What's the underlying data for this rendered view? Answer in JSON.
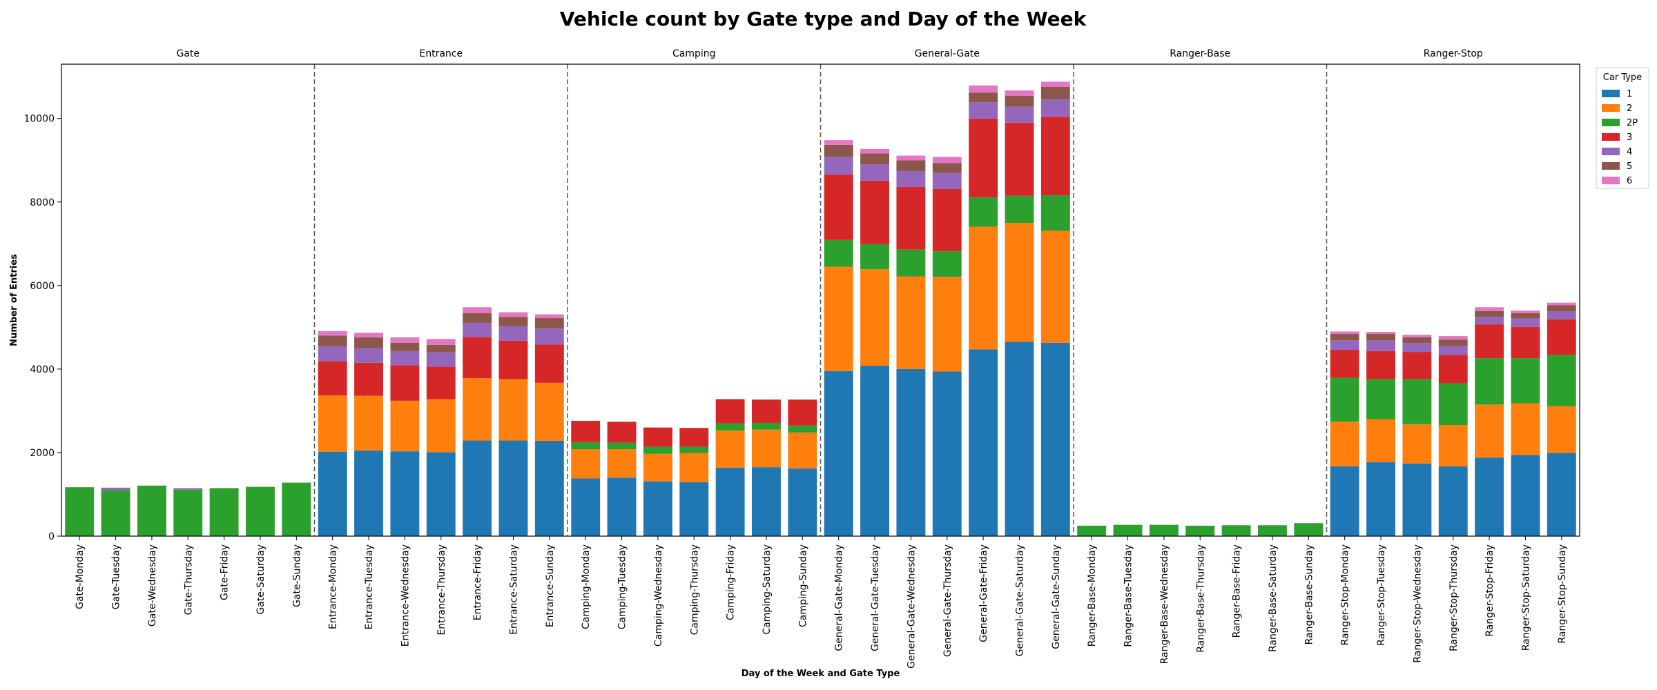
{
  "chart_data": {
    "type": "bar",
    "stacked": true,
    "title": "Vehicle count by Gate type and Day of the Week",
    "xlabel": "Day of the Week and Gate Type",
    "ylabel": "Number of Entries",
    "ylim": [
      0,
      11300
    ],
    "yticks": [
      0,
      2000,
      4000,
      6000,
      8000,
      10000
    ],
    "grid": false,
    "legend_title": "Car Type",
    "legend_position": "upper-right-outside",
    "groups": [
      "Gate",
      "Entrance",
      "Camping",
      "General-Gate",
      "Ranger-Base",
      "Ranger-Stop"
    ],
    "categories": [
      "Gate-Monday",
      "Gate-Tuesday",
      "Gate-Wednesday",
      "Gate-Thursday",
      "Gate-Friday",
      "Gate-Saturday",
      "Gate-Sunday",
      "Entrance-Monday",
      "Entrance-Tuesday",
      "Entrance-Wednesday",
      "Entrance-Thursday",
      "Entrance-Friday",
      "Entrance-Saturday",
      "Entrance-Sunday",
      "Camping-Monday",
      "Camping-Tuesday",
      "Camping-Wednesday",
      "Camping-Thursday",
      "Camping-Friday",
      "Camping-Saturday",
      "Camping-Sunday",
      "General-Gate-Monday",
      "General-Gate-Tuesday",
      "General-Gate-Wednesday",
      "General-Gate-Thursday",
      "General-Gate-Friday",
      "General-Gate-Saturday",
      "General-Gate-Sunday",
      "Ranger-Base-Monday",
      "Ranger-Base-Tuesday",
      "Ranger-Base-Wednesday",
      "Ranger-Base-Thursday",
      "Ranger-Base-Friday",
      "Ranger-Base-Saturday",
      "Ranger-Base-Sunday",
      "Ranger-Stop-Monday",
      "Ranger-Stop-Tuesday",
      "Ranger-Stop-Wednesday",
      "Ranger-Stop-Thursday",
      "Ranger-Stop-Friday",
      "Ranger-Stop-Saturday",
      "Ranger-Stop-Sunday"
    ],
    "series": [
      {
        "name": "1",
        "color": "#1f77b4",
        "values": [
          0,
          0,
          0,
          0,
          0,
          0,
          0,
          2020,
          2050,
          2030,
          2010,
          2290,
          2290,
          2280,
          1380,
          1400,
          1310,
          1290,
          1640,
          1650,
          1620,
          3950,
          4080,
          4000,
          3940,
          4470,
          4650,
          4630,
          0,
          0,
          0,
          0,
          0,
          0,
          0,
          1670,
          1770,
          1740,
          1670,
          1880,
          1940,
          1990
        ]
      },
      {
        "name": "2",
        "color": "#ff7f0e",
        "values": [
          0,
          0,
          0,
          0,
          0,
          0,
          0,
          1350,
          1310,
          1210,
          1270,
          1490,
          1470,
          1390,
          700,
          680,
          660,
          700,
          890,
          900,
          860,
          2500,
          2310,
          2220,
          2270,
          2940,
          2850,
          2680,
          0,
          0,
          0,
          0,
          0,
          0,
          0,
          1070,
          1030,
          940,
          990,
          1270,
          1240,
          1120
        ]
      },
      {
        "name": "2P",
        "color": "#2ca02c",
        "values": [
          1170,
          1100,
          1210,
          1110,
          1150,
          1180,
          1280,
          0,
          0,
          0,
          0,
          0,
          0,
          0,
          170,
          160,
          170,
          150,
          170,
          160,
          170,
          640,
          600,
          640,
          610,
          700,
          650,
          850,
          250,
          270,
          270,
          250,
          260,
          260,
          310,
          1050,
          960,
          1080,
          1000,
          1110,
          1080,
          1230
        ]
      },
      {
        "name": "3",
        "color": "#d62728",
        "values": [
          0,
          0,
          0,
          0,
          0,
          0,
          0,
          820,
          790,
          850,
          780,
          990,
          920,
          920,
          510,
          500,
          460,
          450,
          580,
          560,
          620,
          1570,
          1520,
          1500,
          1490,
          1890,
          1750,
          1880,
          0,
          0,
          0,
          0,
          0,
          0,
          0,
          670,
          670,
          650,
          680,
          810,
          750,
          850
        ]
      },
      {
        "name": "4",
        "color": "#9467bd",
        "values": [
          0,
          60,
          0,
          40,
          0,
          0,
          0,
          360,
          360,
          340,
          340,
          330,
          350,
          380,
          0,
          0,
          0,
          0,
          0,
          0,
          0,
          420,
          390,
          380,
          390,
          390,
          380,
          420,
          0,
          0,
          0,
          0,
          0,
          0,
          0,
          230,
          250,
          210,
          220,
          180,
          200,
          190
        ]
      },
      {
        "name": "5",
        "color": "#8c564b",
        "values": [
          0,
          0,
          0,
          0,
          0,
          0,
          0,
          250,
          250,
          200,
          180,
          240,
          220,
          250,
          0,
          0,
          0,
          0,
          0,
          0,
          0,
          290,
          260,
          260,
          230,
          230,
          260,
          300,
          0,
          0,
          0,
          0,
          0,
          0,
          0,
          150,
          160,
          140,
          140,
          140,
          130,
          150
        ]
      },
      {
        "name": "6",
        "color": "#e377c2",
        "values": [
          0,
          0,
          0,
          0,
          0,
          0,
          0,
          110,
          110,
          130,
          140,
          140,
          110,
          90,
          0,
          0,
          0,
          0,
          0,
          0,
          0,
          110,
          110,
          110,
          150,
          170,
          130,
          120,
          0,
          0,
          0,
          0,
          0,
          0,
          0,
          60,
          50,
          60,
          90,
          90,
          60,
          60
        ]
      }
    ]
  }
}
